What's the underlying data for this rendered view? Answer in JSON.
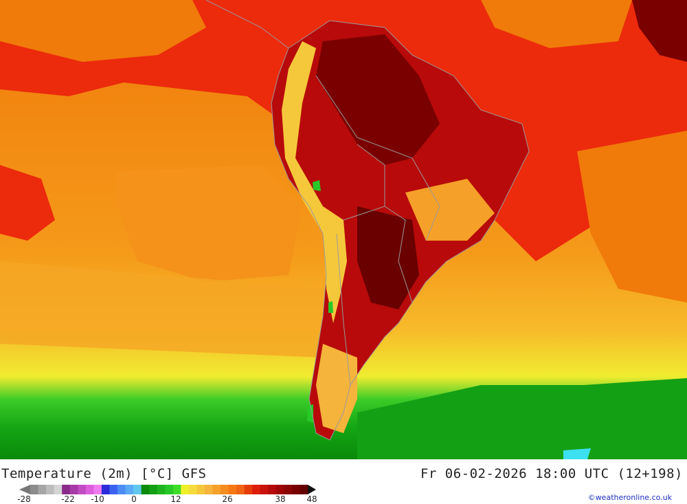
{
  "title": "Temperature (2m) [°C] GFS",
  "datetime": "Fr 06-02-2026 18:00 UTC (12+198)",
  "credit": "©weatheronline.co.uk",
  "legend": {
    "ticks": [
      "-28",
      "-22",
      "-10",
      "0",
      "12",
      "26",
      "38",
      "48"
    ],
    "colors": [
      "#8c8c8c",
      "#a6a6a6",
      "#bdbdbd",
      "#d4d4d4",
      "#8a2b8a",
      "#a63aa6",
      "#c24cc2",
      "#dd5fdd",
      "#f07af0",
      "#2b2bd9",
      "#3c63f0",
      "#4d8bf5",
      "#5aaaf5",
      "#60c8f0",
      "#0a8c0a",
      "#14a014",
      "#1eb41e",
      "#28c828",
      "#3cdc28",
      "#f0f028",
      "#f5dc3c",
      "#f5c83c",
      "#f5b43c",
      "#f5a028",
      "#f58c1e",
      "#f57814",
      "#f06414",
      "#e63c0a",
      "#dc1e0a",
      "#c8140a",
      "#b40a0a",
      "#a00505",
      "#8c0505",
      "#780000",
      "#640000"
    ]
  }
}
